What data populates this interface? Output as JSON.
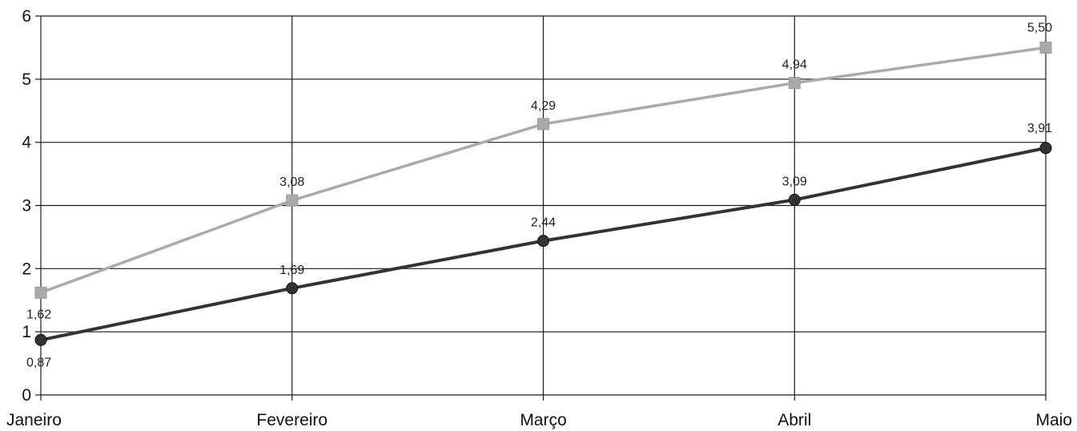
{
  "chart_data": {
    "type": "line",
    "categories": [
      "Janeiro",
      "Fevereiro",
      "Março",
      "Abril",
      "Maio"
    ],
    "ylim": [
      0,
      6
    ],
    "yticks": [
      0,
      1,
      2,
      3,
      4,
      5,
      6
    ],
    "grid": true,
    "series": [
      {
        "values": [
          1.62,
          3.08,
          4.29,
          4.94,
          5.5
        ],
        "labels": [
          "1,62",
          "3,08",
          "4,29",
          "4,94",
          "5,50"
        ],
        "color": "#aaaaaa",
        "marker": "square"
      },
      {
        "values": [
          0.87,
          1.69,
          2.44,
          3.09,
          3.91
        ],
        "labels": [
          "0,87",
          "1,69",
          "2,44",
          "3,09",
          "3,91"
        ],
        "color": "#333333",
        "marker": "circle"
      }
    ]
  }
}
